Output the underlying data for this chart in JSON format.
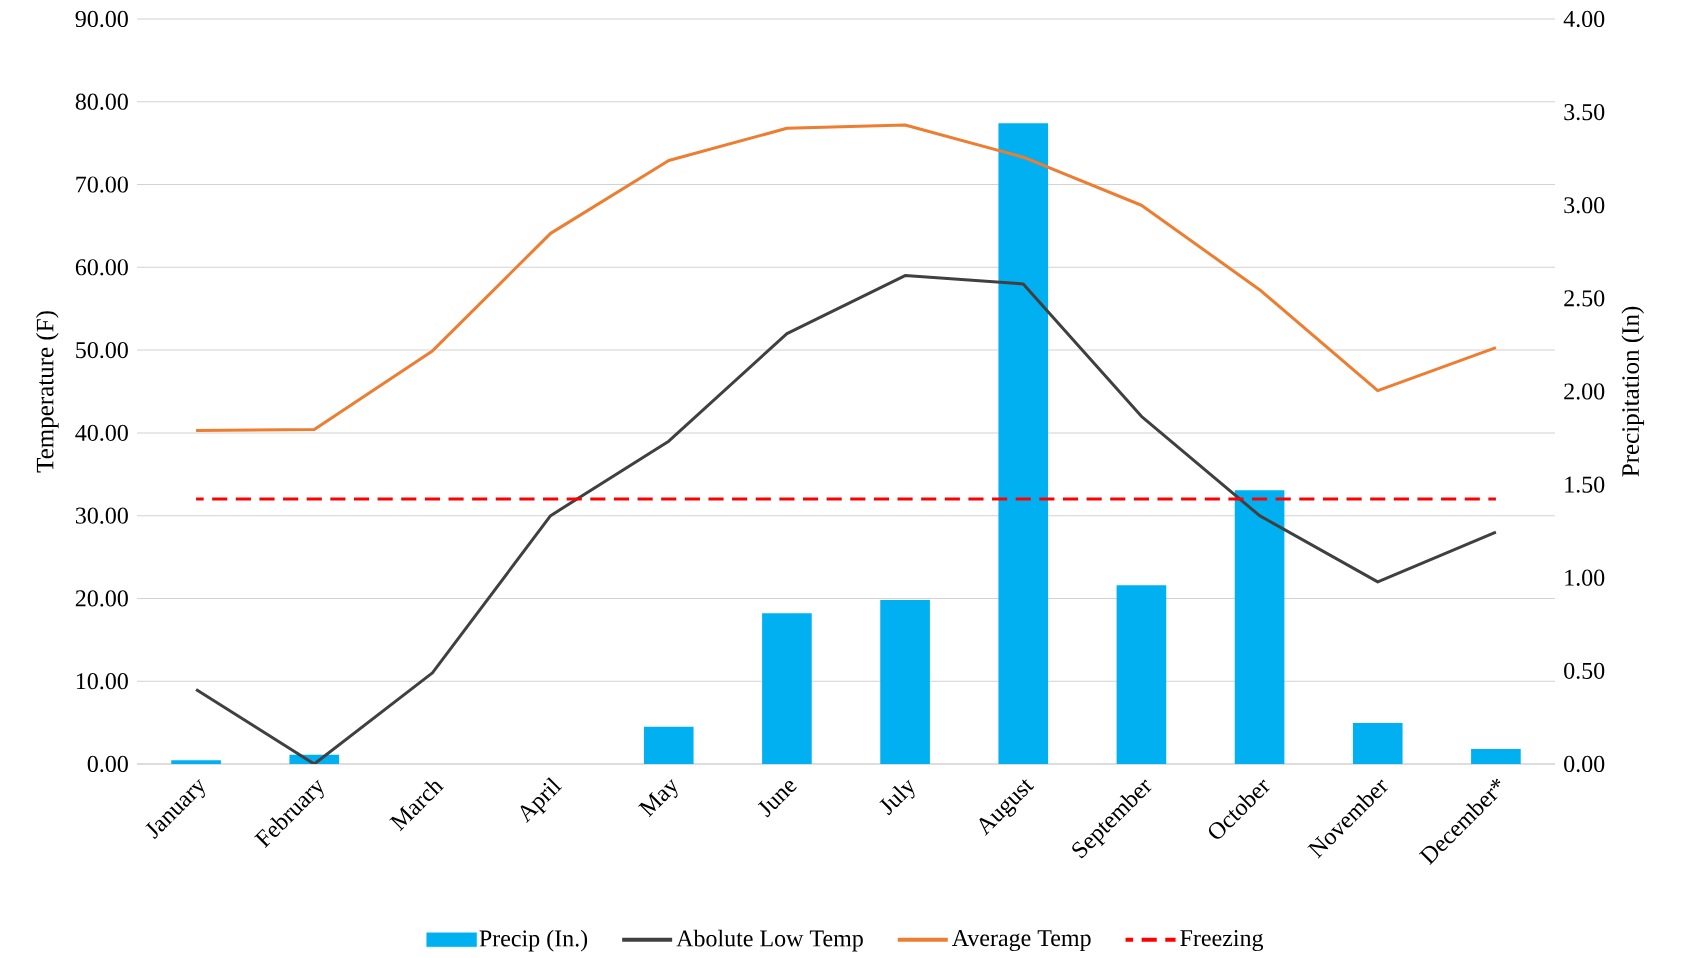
{
  "chart_data": {
    "type": "line",
    "categories": [
      "January",
      "February",
      "March",
      "April",
      "May",
      "June",
      "July",
      "August",
      "September",
      "October",
      "November",
      "December*"
    ],
    "ylabel": "Temperature (F)",
    "y2label": "Precipitation (In)",
    "ylim": [
      0,
      90
    ],
    "yticks": [
      {
        "value": 0,
        "label": "0.00"
      },
      {
        "value": 10,
        "label": "10.00"
      },
      {
        "value": 20,
        "label": "20.00"
      },
      {
        "value": 30,
        "label": "30.00"
      },
      {
        "value": 40,
        "label": "40.00"
      },
      {
        "value": 50,
        "label": "50.00"
      },
      {
        "value": 60,
        "label": "60.00"
      },
      {
        "value": 70,
        "label": "70.00"
      },
      {
        "value": 80,
        "label": "80.00"
      },
      {
        "value": 90,
        "label": "90.00"
      }
    ],
    "y2lim": [
      0,
      4
    ],
    "y2ticks": [
      {
        "value": 0,
        "label": "0.00"
      },
      {
        "value": 0.5,
        "label": "0.50"
      },
      {
        "value": 1,
        "label": "1.00"
      },
      {
        "value": 1.5,
        "label": "1.50"
      },
      {
        "value": 2,
        "label": "2.00"
      },
      {
        "value": 2.5,
        "label": "2.50"
      },
      {
        "value": 3,
        "label": "3.00"
      },
      {
        "value": 3.5,
        "label": "3.50"
      },
      {
        "value": 4,
        "label": "4.00"
      }
    ],
    "grid": "y",
    "legend": "bottom",
    "marker": "none",
    "series": [
      {
        "name": "Precip (In.)",
        "type": "bar",
        "axis": "y2",
        "color": "#00b0f0",
        "values": [
          0.02,
          0.05,
          0,
          0,
          0.2,
          0.81,
          0.88,
          3.44,
          0.96,
          1.47,
          0.22,
          0.08
        ]
      },
      {
        "name": "Abolute Low Temp",
        "color": "#404040",
        "values": [
          9,
          0,
          11,
          30,
          39,
          52,
          59,
          58,
          42,
          30,
          22,
          28
        ]
      },
      {
        "name": "Average Temp",
        "color": "#ed7d31",
        "values": [
          40.3,
          40.4,
          49.9,
          64.1,
          72.9,
          76.8,
          77.2,
          73.3,
          67.5,
          57.3,
          45.1,
          50.3
        ]
      },
      {
        "name": "Freezing",
        "color": "#ff0000",
        "line_style": "dashed",
        "values": [
          32,
          32,
          32,
          32,
          32,
          32,
          32,
          32,
          32,
          32,
          32,
          32
        ]
      }
    ]
  }
}
